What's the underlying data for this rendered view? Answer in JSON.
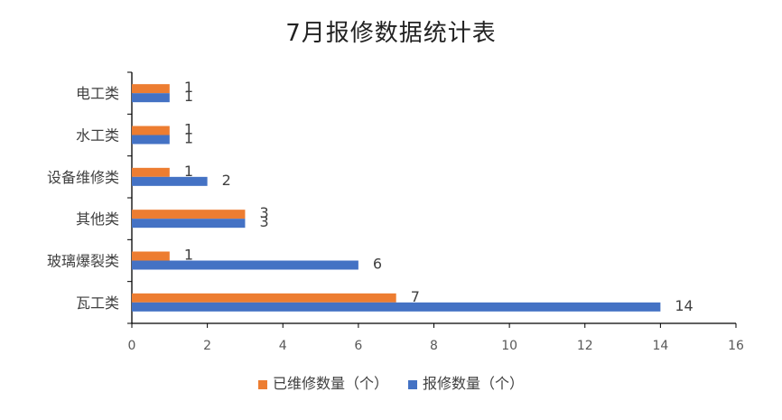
{
  "chart_data": {
    "type": "bar",
    "orientation": "horizontal",
    "title": "7月报修数据统计表",
    "categories": [
      "电工类",
      "水工类",
      "设备维修类",
      "其他类",
      "玻璃爆裂类",
      "瓦工类"
    ],
    "series": [
      {
        "name": "已维修数量（个）",
        "color": "#ED7D31",
        "values": [
          1,
          1,
          1,
          3,
          1,
          7
        ]
      },
      {
        "name": "报修数量（个）",
        "color": "#4472C4",
        "values": [
          1,
          1,
          2,
          3,
          6,
          14
        ]
      }
    ],
    "xlim": [
      0,
      16
    ],
    "xticks": [
      0,
      2,
      4,
      6,
      8,
      10,
      12,
      14,
      16
    ],
    "grid": false,
    "legend": "bottom"
  }
}
